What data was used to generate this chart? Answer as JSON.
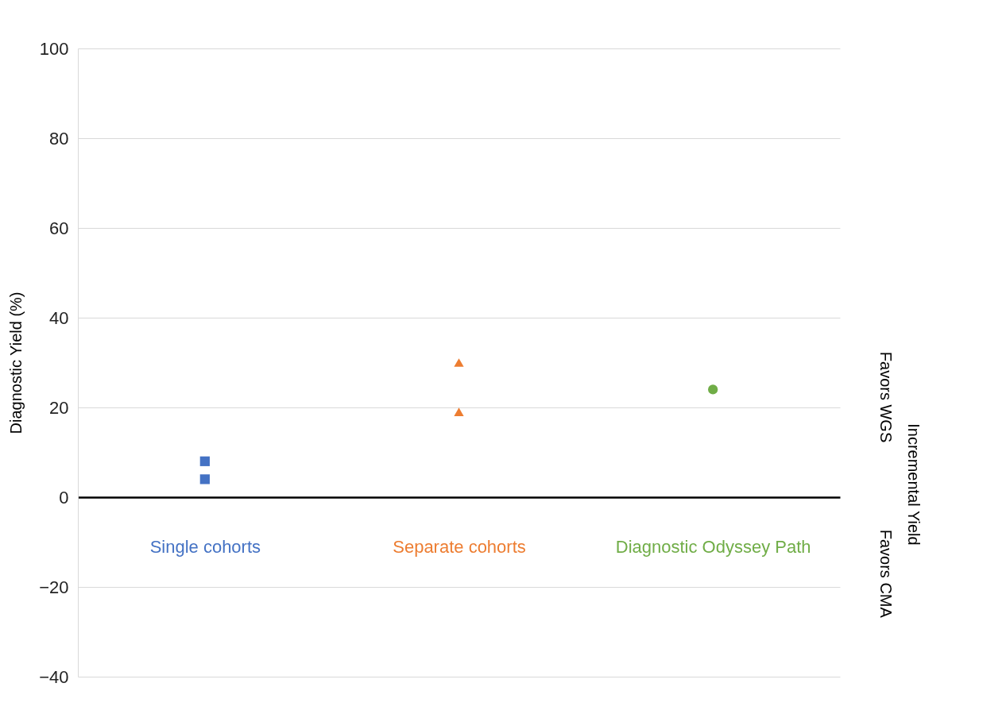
{
  "chart_data": {
    "type": "scatter",
    "ylabel": "Diagnostic Yield (%)",
    "categories": [
      "Single cohorts",
      "Separate cohorts",
      "Diagnostic Odyssey Path"
    ],
    "series": [
      {
        "color": "#4472c4",
        "marker": "square",
        "values": [
          8,
          null,
          null
        ]
      },
      {
        "color": "#4472c4",
        "marker": "square",
        "values": [
          4,
          null,
          null
        ]
      },
      {
        "color": "#ed7d31",
        "marker": "triangle",
        "values": [
          null,
          30,
          null
        ]
      },
      {
        "color": "#ed7d31",
        "marker": "triangle",
        "values": [
          null,
          19,
          null
        ]
      },
      {
        "color": "#70ad47",
        "marker": "circle",
        "values": [
          null,
          null,
          24
        ]
      }
    ],
    "ylim": [
      -40,
      100
    ],
    "yticks": [
      -40,
      -20,
      0,
      20,
      40,
      60,
      80,
      100
    ],
    "grid": "y",
    "annotations": [
      "Incremental Yield",
      "Favors  WGS",
      "Favors  CMA"
    ]
  }
}
